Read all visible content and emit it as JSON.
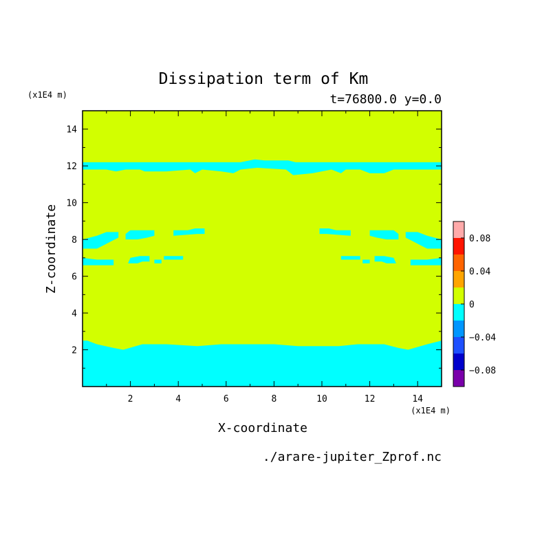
{
  "chart_data": {
    "type": "heatmap",
    "title": "Dissipation term of Km",
    "subtitle": "t=76800.0 y=0.0",
    "xlabel": "X-coordinate",
    "ylabel": "Z-coordinate",
    "x_unit": "(x1E4 m)",
    "y_unit": "(x1E4 m)",
    "source": "./arare-jupiter_Zprof.nc",
    "xlim": [
      0,
      15
    ],
    "ylim": [
      0,
      15
    ],
    "x_ticks": [
      2,
      4,
      6,
      8,
      10,
      12,
      14
    ],
    "y_ticks": [
      2,
      4,
      6,
      8,
      10,
      12,
      14
    ],
    "colorbar": {
      "levels": [
        {
          "from": -0.1,
          "to": -0.08,
          "color": "#7a00aa"
        },
        {
          "from": -0.08,
          "to": -0.06,
          "color": "#0000cc"
        },
        {
          "from": -0.06,
          "to": -0.04,
          "color": "#1e50ff"
        },
        {
          "from": -0.04,
          "to": -0.02,
          "color": "#0096ff"
        },
        {
          "from": -0.02,
          "to": 0.0,
          "color": "#00ffff"
        },
        {
          "from": 0.0,
          "to": 0.02,
          "color": "#d2ff00"
        },
        {
          "from": 0.02,
          "to": 0.04,
          "color": "#ffa500"
        },
        {
          "from": 0.04,
          "to": 0.06,
          "color": "#ff6400"
        },
        {
          "from": 0.06,
          "to": 0.08,
          "color": "#ff1400"
        },
        {
          "from": 0.08,
          "to": 0.1,
          "color": "#ffaaaa"
        }
      ],
      "tick_labels": [
        {
          "value": 0.08,
          "label": "0.08"
        },
        {
          "value": 0.04,
          "label": "0.04"
        },
        {
          "value": 0.0,
          "label": "0"
        },
        {
          "value": -0.04,
          "label": "−0.04"
        },
        {
          "value": -0.08,
          "label": "−0.08"
        }
      ]
    },
    "background_value_color": "#d2ff00",
    "negative_regions": [
      {
        "name": "bottom-layer",
        "points": [
          [
            0,
            0
          ],
          [
            15,
            0
          ],
          [
            15,
            2.5
          ],
          [
            14.4,
            2.3
          ],
          [
            13.6,
            2.0
          ],
          [
            13.2,
            2.1
          ],
          [
            12.6,
            2.3
          ],
          [
            11.5,
            2.3
          ],
          [
            10.7,
            2.2
          ],
          [
            9.0,
            2.2
          ],
          [
            8.0,
            2.3
          ],
          [
            5.8,
            2.3
          ],
          [
            4.8,
            2.2
          ],
          [
            3.5,
            2.3
          ],
          [
            2.5,
            2.3
          ],
          [
            1.7,
            2.0
          ],
          [
            1.3,
            2.1
          ],
          [
            0.6,
            2.3
          ],
          [
            0.2,
            2.5
          ],
          [
            0,
            2.5
          ]
        ]
      },
      {
        "name": "upper-layer",
        "points": [
          [
            0,
            11.8
          ],
          [
            1.0,
            11.8
          ],
          [
            1.4,
            11.7
          ],
          [
            1.8,
            11.8
          ],
          [
            2.4,
            11.8
          ],
          [
            2.6,
            11.7
          ],
          [
            3.5,
            11.7
          ],
          [
            4.5,
            11.8
          ],
          [
            4.7,
            11.6
          ],
          [
            5.0,
            11.8
          ],
          [
            5.8,
            11.7
          ],
          [
            6.3,
            11.6
          ],
          [
            6.6,
            11.8
          ],
          [
            7.3,
            11.9
          ],
          [
            8.5,
            11.8
          ],
          [
            8.8,
            11.5
          ],
          [
            9.6,
            11.6
          ],
          [
            10.4,
            11.8
          ],
          [
            10.8,
            11.6
          ],
          [
            11.0,
            11.8
          ],
          [
            11.6,
            11.8
          ],
          [
            12.0,
            11.6
          ],
          [
            12.6,
            11.6
          ],
          [
            13.0,
            11.8
          ],
          [
            15,
            11.8
          ],
          [
            15,
            12.2
          ],
          [
            10.2,
            12.2
          ],
          [
            8.9,
            12.2
          ],
          [
            8.6,
            12.3
          ],
          [
            7.6,
            12.3
          ],
          [
            7.2,
            12.35
          ],
          [
            6.6,
            12.2
          ],
          [
            0,
            12.2
          ]
        ]
      },
      {
        "name": "left-upper-blob",
        "points": [
          [
            0,
            7.5
          ],
          [
            0.6,
            7.5
          ],
          [
            0.9,
            7.7
          ],
          [
            1.2,
            7.9
          ],
          [
            1.5,
            8.1
          ],
          [
            1.5,
            8.4
          ],
          [
            1.0,
            8.4
          ],
          [
            0.6,
            8.2
          ],
          [
            0,
            8.0
          ]
        ]
      },
      {
        "name": "left-blob-a",
        "points": [
          [
            1.8,
            8.0
          ],
          [
            2.3,
            8.0
          ],
          [
            2.7,
            8.1
          ],
          [
            3.0,
            8.2
          ],
          [
            3.0,
            8.5
          ],
          [
            2.5,
            8.5
          ],
          [
            2.0,
            8.5
          ],
          [
            1.8,
            8.3
          ]
        ]
      },
      {
        "name": "left-blob-b",
        "points": [
          [
            3.8,
            8.2
          ],
          [
            4.8,
            8.3
          ],
          [
            5.1,
            8.3
          ],
          [
            5.1,
            8.6
          ],
          [
            4.7,
            8.6
          ],
          [
            4.4,
            8.5
          ],
          [
            3.8,
            8.5
          ]
        ]
      },
      {
        "name": "left-lower-strip",
        "points": [
          [
            0,
            6.6
          ],
          [
            1.3,
            6.6
          ],
          [
            1.3,
            6.9
          ],
          [
            0.6,
            6.9
          ],
          [
            0,
            7.0
          ]
        ]
      },
      {
        "name": "left-blob-c",
        "points": [
          [
            1.9,
            6.7
          ],
          [
            2.3,
            6.7
          ],
          [
            2.5,
            6.8
          ],
          [
            2.8,
            6.8
          ],
          [
            2.8,
            7.1
          ],
          [
            2.4,
            7.1
          ],
          [
            2.0,
            7.0
          ]
        ]
      },
      {
        "name": "left-blob-d",
        "points": [
          [
            3.0,
            6.7
          ],
          [
            3.3,
            6.7
          ],
          [
            3.3,
            6.9
          ],
          [
            3.0,
            6.9
          ]
        ]
      },
      {
        "name": "left-blob-e",
        "points": [
          [
            3.4,
            6.9
          ],
          [
            4.2,
            6.9
          ],
          [
            4.2,
            7.1
          ],
          [
            3.4,
            7.1
          ]
        ]
      },
      {
        "name": "right-upper-blob",
        "points": [
          [
            15,
            7.5
          ],
          [
            14.4,
            7.5
          ],
          [
            14.1,
            7.7
          ],
          [
            13.8,
            7.9
          ],
          [
            13.5,
            8.1
          ],
          [
            13.5,
            8.4
          ],
          [
            14.0,
            8.4
          ],
          [
            14.4,
            8.2
          ],
          [
            15,
            8.0
          ]
        ]
      },
      {
        "name": "right-blob-a",
        "points": [
          [
            13.2,
            8.0
          ],
          [
            12.7,
            8.0
          ],
          [
            12.3,
            8.1
          ],
          [
            12.0,
            8.2
          ],
          [
            12.0,
            8.5
          ],
          [
            12.5,
            8.5
          ],
          [
            13.0,
            8.5
          ],
          [
            13.2,
            8.3
          ]
        ]
      },
      {
        "name": "right-blob-b",
        "points": [
          [
            11.2,
            8.2
          ],
          [
            10.2,
            8.3
          ],
          [
            9.9,
            8.3
          ],
          [
            9.9,
            8.6
          ],
          [
            10.3,
            8.6
          ],
          [
            10.6,
            8.5
          ],
          [
            11.2,
            8.5
          ]
        ]
      },
      {
        "name": "right-lower-strip",
        "points": [
          [
            15,
            6.6
          ],
          [
            13.7,
            6.6
          ],
          [
            13.7,
            6.9
          ],
          [
            14.4,
            6.9
          ],
          [
            15,
            7.0
          ]
        ]
      },
      {
        "name": "right-blob-c",
        "points": [
          [
            13.1,
            6.7
          ],
          [
            12.7,
            6.7
          ],
          [
            12.5,
            6.8
          ],
          [
            12.2,
            6.8
          ],
          [
            12.2,
            7.1
          ],
          [
            12.6,
            7.1
          ],
          [
            13.0,
            7.0
          ]
        ]
      },
      {
        "name": "right-blob-d",
        "points": [
          [
            12.0,
            6.7
          ],
          [
            11.7,
            6.7
          ],
          [
            11.7,
            6.9
          ],
          [
            12.0,
            6.9
          ]
        ]
      },
      {
        "name": "right-blob-e",
        "points": [
          [
            11.6,
            6.9
          ],
          [
            10.8,
            6.9
          ],
          [
            10.8,
            7.1
          ],
          [
            11.6,
            7.1
          ]
        ]
      }
    ]
  }
}
